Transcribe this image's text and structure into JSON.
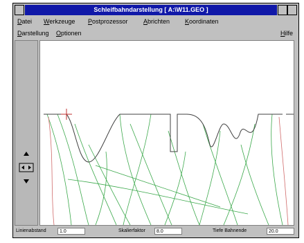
{
  "window": {
    "title": "Schleifbahndarstellung [ A:\\W11.GEO ]"
  },
  "menu": [
    "Datei",
    "Werkzeuge",
    "Postprozessor",
    "Abrichten",
    "Koordinaten"
  ],
  "help": "Hilfe",
  "toolbar": [
    "Darstellung",
    "Optionen"
  ],
  "status": [
    {
      "label": "Linienabstand",
      "value": "1.0"
    },
    {
      "label": "Skalierfaktor",
      "value": "8.0"
    },
    {
      "label": "Tiefe Bahnende",
      "value": "20.0"
    }
  ]
}
